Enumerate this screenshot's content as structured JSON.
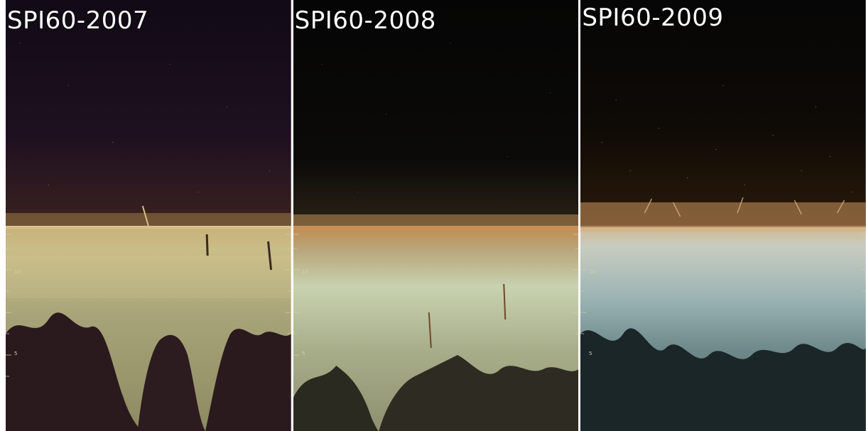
{
  "panels": [
    {
      "label": "SPI60-2007",
      "ruler_marks": [
        "10",
        "5"
      ]
    },
    {
      "label": "SPI60-2008",
      "ruler_marks": [
        "10",
        "5"
      ]
    },
    {
      "label": "SPI60-2009",
      "ruler_marks": [
        "10",
        "5"
      ]
    }
  ]
}
